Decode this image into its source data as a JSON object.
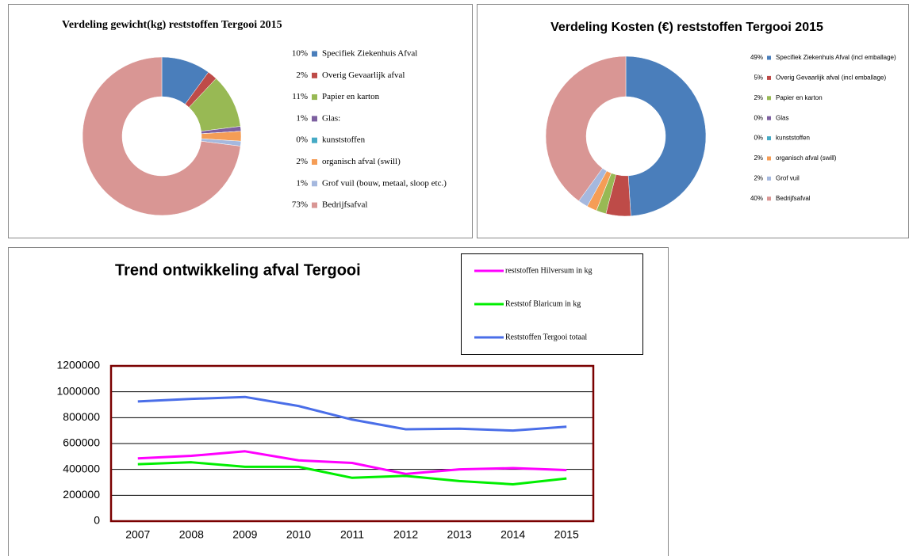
{
  "chart_data": [
    {
      "type": "donut",
      "title": "Verdeling gewicht(kg) reststoffen Tergooi 2015",
      "categories": [
        "Specifiek Ziekenhuis Afval",
        "Overig Gevaarlijk afval",
        "Papier en karton",
        "Glas:",
        "kunststoffen",
        "organisch afval (swill)",
        "Grof vuil (bouw, metaal, sloop etc.)",
        "Bedrijfsafval"
      ],
      "values": [
        10,
        2,
        11,
        1,
        0,
        2,
        1,
        73
      ],
      "value_labels": [
        "10%",
        "2%",
        "11%",
        "1%",
        "0%",
        "2%",
        "1%",
        "73%"
      ],
      "colors": [
        "#4a7ebb",
        "#be4b48",
        "#98b954",
        "#7d60a0",
        "#46aac5",
        "#f59d56",
        "#a5b8de",
        "#d99694"
      ]
    },
    {
      "type": "donut",
      "title": "Verdeling Kosten (€) reststoffen Tergooi 2015",
      "categories": [
        "Specifiek Ziekenhuis Afval (incl emballage)",
        "Overig Gevaarlijk afval (incl emballage)",
        "Papier en karton",
        "Glas",
        "kunststoffen",
        "organisch afval (swill)",
        "Grof vuil",
        "Bedrijfsafval"
      ],
      "values": [
        49,
        5,
        2,
        0,
        0,
        2,
        2,
        40
      ],
      "value_labels": [
        "49%",
        "5%",
        "2%",
        "0%",
        "0%",
        "2%",
        "2%",
        "40%"
      ],
      "colors": [
        "#4a7ebb",
        "#be4b48",
        "#98b954",
        "#7d60a0",
        "#46aac5",
        "#f59d56",
        "#a5b8de",
        "#d99694"
      ]
    },
    {
      "type": "line",
      "title": "Trend ontwikkeling afval Tergooi",
      "categories": [
        "2007",
        "2008",
        "2009",
        "2010",
        "2011",
        "2012",
        "2013",
        "2014",
        "2015"
      ],
      "series": [
        {
          "name": "reststoffen Hilversum in kg",
          "color": "#ff00ff",
          "values": [
            485000,
            505000,
            540000,
            470000,
            450000,
            365000,
            400000,
            410000,
            395000
          ]
        },
        {
          "name": "Reststof Blaricum in kg",
          "color": "#00ee00",
          "values": [
            440000,
            455000,
            420000,
            420000,
            335000,
            350000,
            310000,
            285000,
            330000
          ]
        },
        {
          "name": "Reststoffen Tergooi totaal",
          "color": "#4a6ee8",
          "values": [
            925000,
            945000,
            960000,
            890000,
            785000,
            710000,
            715000,
            700000,
            730000
          ]
        }
      ],
      "ylim": [
        0,
        1200000
      ],
      "yticks": [
        0,
        200000,
        400000,
        600000,
        800000,
        1000000,
        1200000
      ],
      "grid": true,
      "legend": "top-right"
    }
  ]
}
